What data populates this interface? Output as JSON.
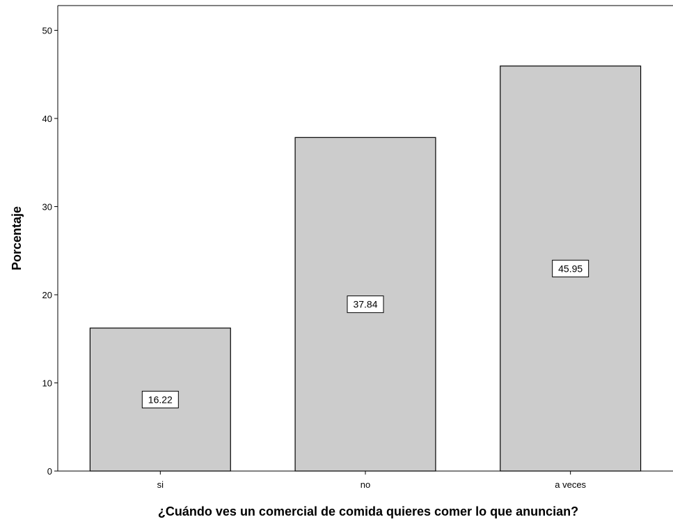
{
  "chart_data": {
    "type": "bar",
    "categories": [
      "si",
      "no",
      "a veces"
    ],
    "values": [
      16.22,
      37.84,
      45.95
    ],
    "data_labels": [
      "16.22",
      "37.84",
      "45.95"
    ],
    "title": "",
    "xlabel": "¿Cuándo ves un comercial de comida quieres comer  lo que anuncian?",
    "ylabel": "Porcentaje",
    "ylim": [
      0,
      52.5
    ],
    "yticks": [
      0,
      10,
      20,
      30,
      40,
      50
    ],
    "grid": false,
    "legend": "none",
    "colors": {
      "bar_fill": "#cccccc",
      "bar_stroke": "#000000",
      "axis": "#000000",
      "label_box": "#ffffff"
    }
  }
}
